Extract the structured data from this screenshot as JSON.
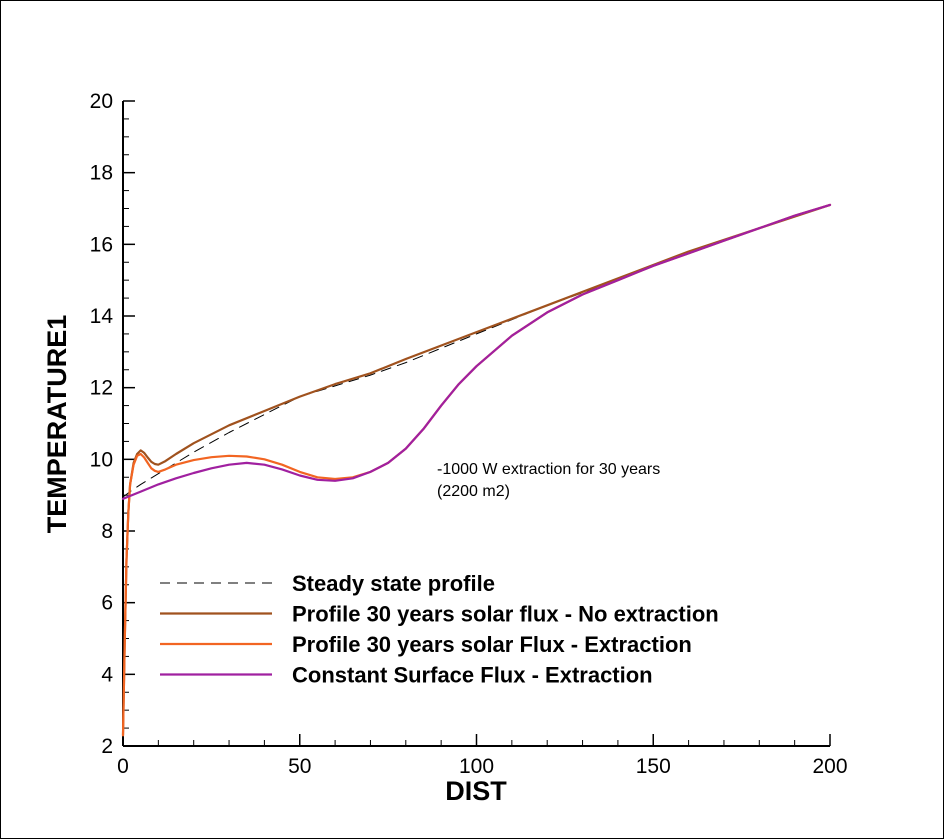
{
  "chart_data": {
    "type": "line",
    "xlabel": "DIST",
    "ylabel": "TEMPERATURE1",
    "xlim": [
      0,
      200
    ],
    "ylim": [
      2,
      20
    ],
    "xticks": [
      0,
      50,
      100,
      150,
      200
    ],
    "yticks": [
      2,
      4,
      6,
      8,
      10,
      12,
      14,
      16,
      18,
      20
    ],
    "grid": false,
    "legend_position": "lower-left",
    "annotation": [
      "-1000 W extraction for 30 years",
      "(2200 m2)"
    ],
    "series": [
      {
        "name": "Steady state profile",
        "color": "#000000",
        "dash": true,
        "x": [
          0,
          2,
          5,
          10,
          20,
          30,
          40,
          50,
          60,
          70,
          80,
          100,
          120,
          140,
          160,
          180,
          200
        ],
        "y": [
          8.95,
          9.1,
          9.3,
          9.6,
          10.2,
          10.75,
          11.25,
          11.75,
          12.05,
          12.35,
          12.7,
          13.5,
          14.3,
          15.0,
          15.8,
          16.45,
          17.1
        ]
      },
      {
        "name": "Profile 30 years solar flux - No extraction",
        "color": "#a0521e",
        "dash": false,
        "x": [
          0,
          0.5,
          1,
          1.5,
          2,
          3,
          4,
          5,
          6,
          7,
          8,
          9,
          10,
          12,
          15,
          20,
          30,
          40,
          50,
          60,
          70,
          80,
          100,
          120,
          140,
          160,
          180,
          200
        ],
        "y": [
          2.3,
          5.0,
          7.2,
          8.5,
          9.3,
          9.9,
          10.15,
          10.25,
          10.18,
          10.05,
          9.93,
          9.87,
          9.85,
          9.95,
          10.15,
          10.45,
          10.95,
          11.35,
          11.75,
          12.1,
          12.4,
          12.8,
          13.55,
          14.3,
          15.05,
          15.8,
          16.45,
          17.1
        ]
      },
      {
        "name": "Profile 30 years solar Flux - Extraction",
        "color": "#f26522",
        "dash": false,
        "x": [
          0,
          0.5,
          1,
          1.5,
          2,
          3,
          4,
          5,
          6,
          7,
          8,
          9,
          10,
          12,
          15,
          20,
          25,
          30,
          35,
          40,
          45,
          50,
          55,
          60,
          65,
          70,
          75,
          80,
          85,
          90,
          95,
          100,
          110,
          120,
          130,
          140,
          150,
          160,
          170,
          180,
          190,
          200
        ],
        "y": [
          2.3,
          5.0,
          7.2,
          8.5,
          9.3,
          9.85,
          10.1,
          10.15,
          10.05,
          9.9,
          9.75,
          9.68,
          9.65,
          9.72,
          9.85,
          9.98,
          10.06,
          10.1,
          10.08,
          10.0,
          9.85,
          9.65,
          9.5,
          9.45,
          9.5,
          9.65,
          9.9,
          10.3,
          10.85,
          11.5,
          12.1,
          12.6,
          13.45,
          14.1,
          14.6,
          15.0,
          15.4,
          15.75,
          16.1,
          16.45,
          16.8,
          17.1
        ]
      },
      {
        "name": "Constant Surface Flux - Extraction",
        "color": "#a020a0",
        "dash": false,
        "x": [
          0,
          5,
          10,
          15,
          20,
          25,
          30,
          35,
          40,
          45,
          50,
          55,
          60,
          65,
          70,
          75,
          80,
          85,
          90,
          95,
          100,
          110,
          120,
          130,
          140,
          150,
          160,
          170,
          180,
          190,
          200
        ],
        "y": [
          8.9,
          9.1,
          9.3,
          9.47,
          9.62,
          9.75,
          9.85,
          9.9,
          9.85,
          9.72,
          9.55,
          9.43,
          9.4,
          9.47,
          9.65,
          9.9,
          10.3,
          10.85,
          11.5,
          12.1,
          12.6,
          13.45,
          14.1,
          14.6,
          15.0,
          15.4,
          15.75,
          16.1,
          16.45,
          16.8,
          17.1
        ]
      }
    ]
  }
}
